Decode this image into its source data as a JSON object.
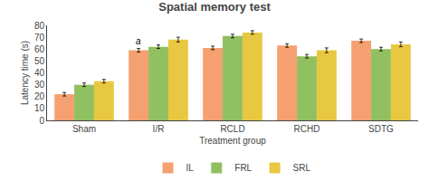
{
  "chart_data": {
    "type": "bar",
    "title": "Spatial memory test",
    "xlabel": "Treatment group",
    "ylabel": "Latency time (s)",
    "categories": [
      "Sham",
      "I/R",
      "RCLD",
      "RCHD",
      "SDTG"
    ],
    "series": [
      {
        "name": "IL",
        "color": "#F4A070",
        "values": [
          22,
          59,
          61,
          63,
          67
        ],
        "errors": [
          1.5,
          1.5,
          1.5,
          1.5,
          1.5
        ]
      },
      {
        "name": "FRL",
        "color": "#90C060",
        "values": [
          30,
          62,
          71,
          54,
          60
        ],
        "errors": [
          1.5,
          1.5,
          1.5,
          1.5,
          1.5
        ]
      },
      {
        "name": "SRL",
        "color": "#E8C840",
        "values": [
          33,
          68,
          74,
          59,
          64
        ],
        "errors": [
          1.5,
          2.0,
          1.5,
          2.0,
          2.0
        ]
      }
    ],
    "ylim": [
      0,
      80
    ],
    "yticks": [
      0,
      10,
      20,
      30,
      40,
      50,
      60,
      70,
      80
    ],
    "grid": false,
    "legend": "bottom",
    "annotations": [
      {
        "text": "a",
        "category": "I/R",
        "series": "IL"
      }
    ]
  }
}
